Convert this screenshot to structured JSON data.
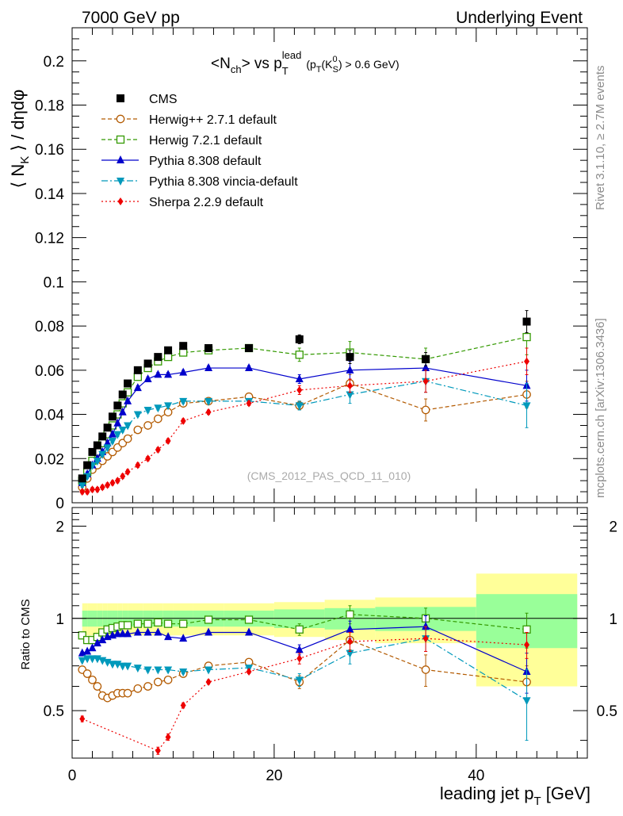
{
  "header": {
    "left": "7000 GeV pp",
    "right": "Underlying Event"
  },
  "side_labels": {
    "rivet": "Rivet 3.1.10, ≥ 2.7M events",
    "mcplots": "mcplots.cern.ch [arXiv:1306.3436]"
  },
  "chart_data": [
    {
      "type": "line",
      "panel": "main",
      "title": "<N_ch> vs p_T^lead (p_T(K_S^0) > 0.6 GeV)",
      "title_parts": {
        "a": "<N",
        "a_sub": "ch",
        "b": "> vs p",
        "b_sub": "T",
        "b_sup": "lead",
        "c": "(p",
        "c_sub": "T",
        "d": "(K",
        "d_sub": "S",
        "d_sup": "0",
        "e": ") > 0.6 GeV)"
      },
      "ylabel": "⟨ N_K ⟩ / dηdφ",
      "ylabel_parts": {
        "a": "⟨ N",
        "a_sub": "K",
        "b": " ⟩ / dηdφ"
      },
      "xlim": [
        0,
        51
      ],
      "ylim": [
        0,
        0.215
      ],
      "yticks": [
        0,
        0.02,
        0.04,
        0.06,
        0.08,
        0.1,
        0.12,
        0.14,
        0.16,
        0.18,
        0.2
      ],
      "ytick_labels": [
        "0",
        "0.02",
        "0.04",
        "0.06",
        "0.08",
        "0.1",
        "0.12",
        "0.14",
        "0.16",
        "0.18",
        "0.2"
      ],
      "watermark": "(CMS_2012_PAS_QCD_11_010)",
      "legend_position": "top-left",
      "series": [
        {
          "name": "CMS",
          "color": "#000000",
          "marker": "filled-square",
          "line": "none",
          "x": [
            1,
            1.5,
            2,
            2.5,
            3,
            3.5,
            4,
            4.5,
            5,
            5.5,
            6.5,
            7.5,
            8.5,
            9.5,
            11,
            13.5,
            17.5,
            22.5,
            27.5,
            35,
            45
          ],
          "y": [
            0.011,
            0.017,
            0.023,
            0.026,
            0.03,
            0.034,
            0.039,
            0.044,
            0.049,
            0.054,
            0.06,
            0.063,
            0.066,
            0.069,
            0.071,
            0.07,
            0.07,
            0.074,
            0.066,
            0.065,
            0.082
          ],
          "err": [
            0.001,
            0.001,
            0.001,
            0.001,
            0.001,
            0.001,
            0.001,
            0.001,
            0.001,
            0.001,
            0.001,
            0.001,
            0.001,
            0.001,
            0.001,
            0.001,
            0.001,
            0.002,
            0.003,
            0.003,
            0.005
          ]
        },
        {
          "name": "Herwig++ 2.7.1 default",
          "color": "#b35a00",
          "marker": "open-circle",
          "line": "dashed",
          "x": [
            1,
            1.5,
            2,
            2.5,
            3,
            3.5,
            4,
            4.5,
            5,
            5.5,
            6.5,
            7.5,
            8.5,
            9.5,
            11,
            13.5,
            17.5,
            22.5,
            27.5,
            35,
            45
          ],
          "y": [
            0.007,
            0.011,
            0.015,
            0.017,
            0.019,
            0.021,
            0.023,
            0.025,
            0.027,
            0.029,
            0.033,
            0.035,
            0.038,
            0.041,
            0.045,
            0.046,
            0.048,
            0.044,
            0.054,
            0.042,
            0.049
          ],
          "err": [
            0.001,
            0.001,
            0.001,
            0.001,
            0.001,
            0.001,
            0.001,
            0.001,
            0.001,
            0.001,
            0.001,
            0.001,
            0.001,
            0.001,
            0.001,
            0.001,
            0.001,
            0.002,
            0.004,
            0.005,
            0.006
          ]
        },
        {
          "name": "Herwig 7.2.1 default",
          "color": "#339900",
          "marker": "open-square",
          "line": "dashed",
          "x": [
            1,
            1.5,
            2,
            2.5,
            3,
            3.5,
            4,
            4.5,
            5,
            5.5,
            6.5,
            7.5,
            8.5,
            9.5,
            11,
            13.5,
            17.5,
            22.5,
            27.5,
            35,
            45
          ],
          "y": [
            0.01,
            0.014,
            0.019,
            0.023,
            0.027,
            0.031,
            0.035,
            0.04,
            0.045,
            0.05,
            0.057,
            0.061,
            0.064,
            0.066,
            0.068,
            0.069,
            0.07,
            0.067,
            0.068,
            0.065,
            0.075
          ],
          "err": [
            0.001,
            0.001,
            0.001,
            0.001,
            0.001,
            0.001,
            0.001,
            0.001,
            0.001,
            0.001,
            0.001,
            0.001,
            0.001,
            0.001,
            0.001,
            0.001,
            0.001,
            0.003,
            0.005,
            0.005,
            0.008
          ]
        },
        {
          "name": "Pythia 8.308 default",
          "color": "#0000cc",
          "marker": "filled-triangle-up",
          "line": "solid",
          "x": [
            1,
            1.5,
            2,
            2.5,
            3,
            3.5,
            4,
            4.5,
            5,
            5.5,
            6.5,
            7.5,
            8.5,
            9.5,
            11,
            13.5,
            17.5,
            22.5,
            27.5,
            35,
            45
          ],
          "y": [
            0.009,
            0.013,
            0.017,
            0.02,
            0.023,
            0.027,
            0.031,
            0.036,
            0.041,
            0.046,
            0.052,
            0.056,
            0.058,
            0.058,
            0.059,
            0.061,
            0.061,
            0.056,
            0.06,
            0.061,
            0.053
          ],
          "err": [
            0.001,
            0.001,
            0.001,
            0.001,
            0.001,
            0.001,
            0.001,
            0.001,
            0.001,
            0.001,
            0.001,
            0.001,
            0.001,
            0.001,
            0.001,
            0.001,
            0.001,
            0.002,
            0.004,
            0.005,
            0.007
          ]
        },
        {
          "name": "Pythia 8.308 vincia-default",
          "color": "#0099bb",
          "marker": "filled-triangle-down",
          "line": "dashdot",
          "x": [
            1,
            1.5,
            2,
            2.5,
            3,
            3.5,
            4,
            4.5,
            5,
            5.5,
            6.5,
            7.5,
            8.5,
            9.5,
            11,
            13.5,
            17.5,
            22.5,
            27.5,
            35,
            45
          ],
          "y": [
            0.008,
            0.012,
            0.017,
            0.019,
            0.022,
            0.025,
            0.028,
            0.031,
            0.033,
            0.035,
            0.04,
            0.042,
            0.043,
            0.044,
            0.046,
            0.046,
            0.046,
            0.044,
            0.049,
            0.055,
            0.044
          ],
          "err": [
            0.001,
            0.001,
            0.001,
            0.001,
            0.001,
            0.001,
            0.001,
            0.001,
            0.001,
            0.001,
            0.001,
            0.001,
            0.001,
            0.001,
            0.001,
            0.001,
            0.001,
            0.002,
            0.004,
            0.005,
            0.01
          ]
        },
        {
          "name": "Sherpa 2.2.9 default",
          "color": "#ee0000",
          "marker": "filled-diamond",
          "line": "dotted",
          "x": [
            1,
            1.5,
            2,
            2.5,
            3,
            3.5,
            4,
            4.5,
            5,
            5.5,
            6.5,
            7.5,
            8.5,
            9.5,
            11,
            13.5,
            17.5,
            22.5,
            27.5,
            35,
            45
          ],
          "y": [
            0.005,
            0.005,
            0.006,
            0.006,
            0.007,
            0.008,
            0.009,
            0.01,
            0.012,
            0.014,
            0.017,
            0.02,
            0.024,
            0.028,
            0.037,
            0.041,
            0.045,
            0.051,
            0.053,
            0.055,
            0.064
          ],
          "err": [
            0.001,
            0.001,
            0.001,
            0.001,
            0.001,
            0.001,
            0.001,
            0.001,
            0.001,
            0.001,
            0.001,
            0.001,
            0.001,
            0.001,
            0.001,
            0.001,
            0.001,
            0.002,
            0.003,
            0.005,
            0.006
          ]
        }
      ]
    },
    {
      "type": "line",
      "panel": "ratio",
      "ylabel": "Ratio to CMS",
      "xlabel": "leading jet p_T [GeV]",
      "xlabel_parts": {
        "a": "leading jet p",
        "a_sub": "T",
        "b": " [GeV]"
      },
      "xlim": [
        0,
        51
      ],
      "ylim": [
        0.35,
        2.3
      ],
      "ylog": true,
      "yticks": [
        0.5,
        1,
        2
      ],
      "ytick_labels": [
        "0.5",
        "1",
        "2"
      ],
      "xticks": [
        0,
        20,
        40
      ],
      "xtick_labels": [
        "0",
        "20",
        "40"
      ],
      "reference_line": 1,
      "bands": {
        "edges": [
          1,
          1.5,
          2,
          2.5,
          3,
          3.5,
          4,
          4.5,
          5,
          5.5,
          6,
          7,
          8,
          9,
          10,
          12,
          15,
          20,
          25,
          30,
          40,
          50
        ],
        "yellow_halfwidth": [
          0.12,
          0.12,
          0.12,
          0.12,
          0.12,
          0.12,
          0.12,
          0.12,
          0.12,
          0.12,
          0.12,
          0.12,
          0.12,
          0.12,
          0.12,
          0.12,
          0.12,
          0.13,
          0.15,
          0.17,
          0.4
        ],
        "green_halfwidth": [
          0.06,
          0.06,
          0.06,
          0.06,
          0.06,
          0.06,
          0.06,
          0.06,
          0.06,
          0.06,
          0.06,
          0.06,
          0.06,
          0.06,
          0.06,
          0.06,
          0.06,
          0.07,
          0.08,
          0.09,
          0.2
        ],
        "yellow_color": "#ffff99",
        "green_color": "#99ff99"
      },
      "series": [
        {
          "name": "Herwig++ 2.7.1 default",
          "color": "#b35a00",
          "marker": "open-circle",
          "line": "dashed",
          "x": [
            1,
            1.5,
            2,
            2.5,
            3,
            3.5,
            4,
            4.5,
            5,
            5.5,
            6.5,
            7.5,
            8.5,
            9.5,
            11,
            13.5,
            17.5,
            22.5,
            27.5,
            35,
            45
          ],
          "y": [
            0.68,
            0.66,
            0.63,
            0.6,
            0.56,
            0.55,
            0.56,
            0.57,
            0.57,
            0.57,
            0.59,
            0.6,
            0.62,
            0.63,
            0.66,
            0.7,
            0.72,
            0.62,
            0.85,
            0.68,
            0.62
          ],
          "err": [
            0.01,
            0.01,
            0.01,
            0.01,
            0.01,
            0.01,
            0.01,
            0.01,
            0.01,
            0.01,
            0.01,
            0.01,
            0.01,
            0.01,
            0.01,
            0.01,
            0.01,
            0.03,
            0.06,
            0.08,
            0.08
          ]
        },
        {
          "name": "Herwig 7.2.1 default",
          "color": "#339900",
          "marker": "open-square",
          "line": "dashed",
          "x": [
            1,
            1.5,
            2,
            2.5,
            3,
            3.5,
            4,
            4.5,
            5,
            5.5,
            6.5,
            7.5,
            8.5,
            9.5,
            11,
            13.5,
            17.5,
            22.5,
            27.5,
            35,
            45
          ],
          "y": [
            0.88,
            0.85,
            0.85,
            0.87,
            0.9,
            0.92,
            0.93,
            0.94,
            0.95,
            0.95,
            0.96,
            0.96,
            0.97,
            0.96,
            0.96,
            0.99,
            0.99,
            0.92,
            1.03,
            1.0,
            0.92
          ],
          "err": [
            0.01,
            0.01,
            0.01,
            0.01,
            0.01,
            0.01,
            0.01,
            0.01,
            0.01,
            0.01,
            0.01,
            0.01,
            0.01,
            0.01,
            0.01,
            0.01,
            0.01,
            0.04,
            0.07,
            0.08,
            0.12
          ]
        },
        {
          "name": "Pythia 8.308 default",
          "color": "#0000cc",
          "marker": "filled-triangle-up",
          "line": "solid",
          "x": [
            1,
            1.5,
            2,
            2.5,
            3,
            3.5,
            4,
            4.5,
            5,
            5.5,
            6.5,
            7.5,
            8.5,
            9.5,
            11,
            13.5,
            17.5,
            22.5,
            27.5,
            35,
            45
          ],
          "y": [
            0.77,
            0.78,
            0.8,
            0.83,
            0.85,
            0.87,
            0.88,
            0.89,
            0.89,
            0.89,
            0.9,
            0.9,
            0.9,
            0.87,
            0.86,
            0.9,
            0.9,
            0.79,
            0.92,
            0.94,
            0.67
          ],
          "err": [
            0.01,
            0.01,
            0.01,
            0.01,
            0.01,
            0.01,
            0.01,
            0.01,
            0.01,
            0.01,
            0.01,
            0.01,
            0.01,
            0.01,
            0.01,
            0.01,
            0.01,
            0.03,
            0.06,
            0.08,
            0.1
          ]
        },
        {
          "name": "Pythia 8.308 vincia-default",
          "color": "#0099bb",
          "marker": "filled-triangle-down",
          "line": "dashdot",
          "x": [
            1,
            1.5,
            2,
            2.5,
            3,
            3.5,
            4,
            4.5,
            5,
            5.5,
            6.5,
            7.5,
            8.5,
            9.5,
            11,
            13.5,
            17.5,
            22.5,
            27.5,
            35,
            45
          ],
          "y": [
            0.73,
            0.74,
            0.74,
            0.74,
            0.73,
            0.72,
            0.71,
            0.71,
            0.7,
            0.7,
            0.69,
            0.68,
            0.68,
            0.68,
            0.67,
            0.68,
            0.69,
            0.63,
            0.77,
            0.86,
            0.54
          ],
          "err": [
            0.01,
            0.01,
            0.01,
            0.01,
            0.01,
            0.01,
            0.01,
            0.01,
            0.01,
            0.01,
            0.01,
            0.01,
            0.01,
            0.01,
            0.01,
            0.01,
            0.01,
            0.03,
            0.06,
            0.08,
            0.14
          ]
        },
        {
          "name": "Sherpa 2.2.9 default",
          "color": "#ee0000",
          "marker": "filled-diamond",
          "line": "dotted",
          "x": [
            1,
            8.5,
            9.5,
            11,
            13.5,
            17.5,
            22.5,
            27.5,
            35,
            45
          ],
          "y": [
            0.47,
            0.37,
            0.41,
            0.52,
            0.62,
            0.67,
            0.74,
            0.84,
            0.86,
            0.82
          ],
          "err": [
            0.01,
            0.01,
            0.01,
            0.01,
            0.01,
            0.01,
            0.03,
            0.06,
            0.08,
            0.08
          ]
        }
      ]
    }
  ]
}
